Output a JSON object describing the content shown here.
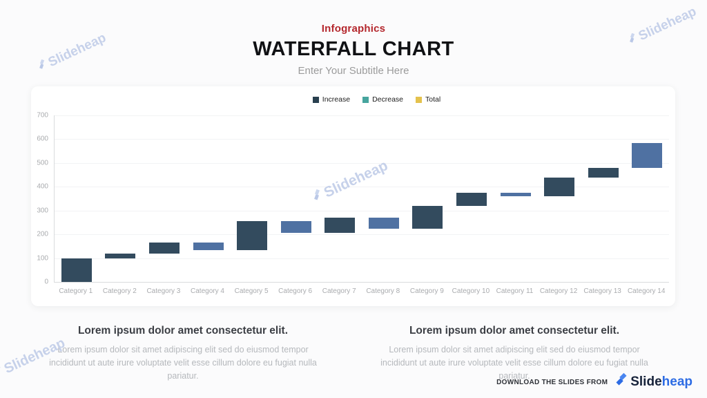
{
  "header": {
    "eyebrow": "Infographics",
    "title": "WATERFALL CHART",
    "subtitle": "Enter Your Subtitle Here"
  },
  "watermark": {
    "text": "Slideheap"
  },
  "theme": {
    "accent_red": "#b4272d",
    "bar_dark": "#334b5e",
    "bar_light": "#4f71a2",
    "legend_increase": "#29404f",
    "legend_decrease": "#47a59e",
    "legend_total": "#e4c24d",
    "brand_blue": "#2d6ce4",
    "watermark_blue": "#c6d1ea"
  },
  "chart_data": {
    "type": "bar",
    "subtype": "waterfall",
    "title": "",
    "xlabel": "",
    "ylabel": "",
    "ylim": [
      0,
      700
    ],
    "yticks": [
      0,
      100,
      200,
      300,
      400,
      500,
      600,
      700
    ],
    "grid": true,
    "legend_position": "top-center",
    "legend": [
      {
        "label": "Increase",
        "color": "#29404f"
      },
      {
        "label": "Decrease",
        "color": "#47a59e"
      },
      {
        "label": "Total",
        "color": "#e4c24d"
      }
    ],
    "categories": [
      "Category 1",
      "Category 2",
      "Category 3",
      "Category 4",
      "Category 5",
      "Category 6",
      "Category 7",
      "Category 8",
      "Category 9",
      "Category 10",
      "Category 11",
      "Category 12",
      "Category 13",
      "Category 14"
    ],
    "bars": [
      {
        "category": "Category 1",
        "from": 0,
        "to": 100,
        "change": "increase",
        "color": "#334b5e"
      },
      {
        "category": "Category 2",
        "from": 100,
        "to": 120,
        "change": "increase",
        "color": "#334b5e"
      },
      {
        "category": "Category 3",
        "from": 120,
        "to": 165,
        "change": "increase",
        "color": "#334b5e"
      },
      {
        "category": "Category 4",
        "from": 165,
        "to": 135,
        "change": "decrease",
        "color": "#4f71a2"
      },
      {
        "category": "Category 5",
        "from": 135,
        "to": 255,
        "change": "increase",
        "color": "#334b5e"
      },
      {
        "category": "Category 6",
        "from": 255,
        "to": 205,
        "change": "decrease",
        "color": "#4f71a2"
      },
      {
        "category": "Category 7",
        "from": 205,
        "to": 270,
        "change": "increase",
        "color": "#334b5e"
      },
      {
        "category": "Category 8",
        "from": 270,
        "to": 225,
        "change": "decrease",
        "color": "#4f71a2"
      },
      {
        "category": "Category 9",
        "from": 225,
        "to": 320,
        "change": "increase",
        "color": "#334b5e"
      },
      {
        "category": "Category 10",
        "from": 320,
        "to": 375,
        "change": "increase",
        "color": "#334b5e"
      },
      {
        "category": "Category 11",
        "from": 375,
        "to": 360,
        "change": "decrease",
        "color": "#4f71a2"
      },
      {
        "category": "Category 12",
        "from": 360,
        "to": 440,
        "change": "increase",
        "color": "#334b5e"
      },
      {
        "category": "Category 13",
        "from": 440,
        "to": 480,
        "change": "increase",
        "color": "#334b5e"
      },
      {
        "category": "Category 14",
        "from": 480,
        "to": 585,
        "change": "increase",
        "color": "#4f71a2"
      }
    ]
  },
  "sections": [
    {
      "heading": "Lorem ipsum dolor amet consectetur elit.",
      "body": "Lorem ipsum dolor sit amet adipiscing elit sed do eiusmod tempor incididunt ut aute irure voluptate velit esse cillum dolore eu fugiat nulla pariatur."
    },
    {
      "heading": "Lorem ipsum dolor amet consectetur elit.",
      "body": "Lorem ipsum dolor sit amet adipiscing elit sed do eiusmod tempor incididunt ut aute irure voluptate velit esse cillum dolore eu fugiat nulla pariatur."
    }
  ],
  "footer": {
    "cta": "DOWNLOAD THE SLIDES FROM",
    "brand_slide": "Slide",
    "brand_heap": "heap"
  }
}
